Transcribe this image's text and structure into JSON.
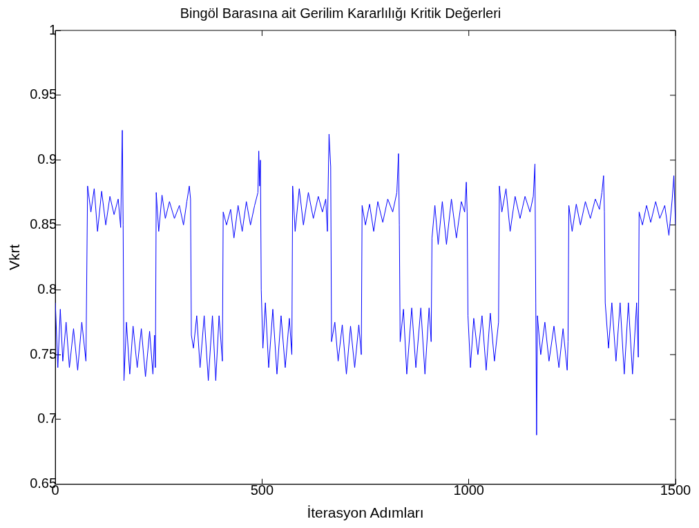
{
  "chart_data": {
    "type": "line",
    "title": "Bingöl Barasına ait Gerilim Kararlılığı Kritik Değerleri",
    "xlabel": "İterasyon Adımları",
    "ylabel": "Vkrt",
    "xlim": [
      0,
      1500
    ],
    "xticks": [
      0,
      500,
      1000,
      1500
    ],
    "ylim": [
      0.65,
      1
    ],
    "yticks": [
      0.65,
      0.7,
      0.75,
      0.8,
      0.85,
      0.9,
      0.95,
      1
    ],
    "grid": false,
    "legend": false,
    "marker": "none",
    "line_style": "solid",
    "series": [
      {
        "color": "#0000ff",
        "x": [
          0,
          6,
          12,
          18,
          26,
          34,
          44,
          54,
          64,
          74,
          78,
          86,
          94,
          102,
          112,
          122,
          132,
          142,
          152,
          158,
          162,
          164,
          166,
          172,
          180,
          188,
          198,
          208,
          218,
          228,
          236,
          240,
          242,
          244,
          250,
          258,
          266,
          276,
          288,
          300,
          310,
          318,
          324,
          327,
          329,
          334,
          342,
          350,
          360,
          370,
          380,
          388,
          396,
          404,
          406,
          414,
          424,
          432,
          442,
          452,
          462,
          472,
          482,
          490,
          492,
          494,
          496,
          498,
          502,
          508,
          516,
          526,
          536,
          546,
          556,
          566,
          572,
          574,
          580,
          590,
          600,
          612,
          624,
          636,
          646,
          654,
          658,
          662,
          666,
          668,
          676,
          684,
          694,
          704,
          714,
          724,
          734,
          740,
          742,
          750,
          760,
          770,
          780,
          792,
          804,
          816,
          826,
          830,
          832,
          834,
          842,
          850,
          862,
          872,
          884,
          894,
          904,
          909,
          911,
          918,
          926,
          936,
          946,
          958,
          970,
          982,
          990,
          994,
          996,
          998,
          1004,
          1012,
          1022,
          1032,
          1042,
          1052,
          1062,
          1072,
          1074,
          1080,
          1090,
          1100,
          1112,
          1124,
          1136,
          1148,
          1156,
          1160,
          1162,
          1164,
          1166,
          1174,
          1184,
          1194,
          1206,
          1218,
          1228,
          1238,
          1240,
          1242,
          1250,
          1260,
          1270,
          1282,
          1294,
          1306,
          1316,
          1322,
          1326,
          1328,
          1330,
          1338,
          1346,
          1356,
          1366,
          1376,
          1386,
          1396,
          1406,
          1410,
          1412,
          1420,
          1430,
          1440,
          1452,
          1462,
          1474,
          1484,
          1492,
          1496,
          1500
        ],
        "values": [
          0.79,
          0.74,
          0.785,
          0.745,
          0.775,
          0.74,
          0.77,
          0.738,
          0.775,
          0.745,
          0.88,
          0.86,
          0.878,
          0.845,
          0.876,
          0.85,
          0.872,
          0.858,
          0.87,
          0.848,
          0.923,
          0.85,
          0.73,
          0.775,
          0.735,
          0.772,
          0.74,
          0.77,
          0.733,
          0.768,
          0.735,
          0.765,
          0.74,
          0.875,
          0.845,
          0.873,
          0.855,
          0.868,
          0.855,
          0.865,
          0.85,
          0.868,
          0.88,
          0.87,
          0.765,
          0.755,
          0.78,
          0.74,
          0.78,
          0.73,
          0.78,
          0.73,
          0.78,
          0.745,
          0.86,
          0.85,
          0.862,
          0.84,
          0.865,
          0.845,
          0.868,
          0.85,
          0.865,
          0.875,
          0.907,
          0.88,
          0.9,
          0.8,
          0.755,
          0.79,
          0.74,
          0.785,
          0.735,
          0.78,
          0.74,
          0.778,
          0.75,
          0.88,
          0.845,
          0.878,
          0.85,
          0.875,
          0.855,
          0.872,
          0.86,
          0.87,
          0.845,
          0.92,
          0.895,
          0.76,
          0.775,
          0.745,
          0.773,
          0.735,
          0.772,
          0.74,
          0.773,
          0.75,
          0.865,
          0.85,
          0.866,
          0.845,
          0.868,
          0.852,
          0.87,
          0.86,
          0.875,
          0.905,
          0.85,
          0.76,
          0.785,
          0.735,
          0.786,
          0.74,
          0.786,
          0.735,
          0.786,
          0.76,
          0.84,
          0.865,
          0.835,
          0.868,
          0.835,
          0.87,
          0.84,
          0.868,
          0.86,
          0.883,
          0.86,
          0.78,
          0.74,
          0.778,
          0.75,
          0.78,
          0.738,
          0.782,
          0.745,
          0.775,
          0.88,
          0.86,
          0.878,
          0.845,
          0.872,
          0.855,
          0.872,
          0.86,
          0.872,
          0.897,
          0.79,
          0.688,
          0.78,
          0.75,
          0.775,
          0.745,
          0.772,
          0.74,
          0.77,
          0.738,
          0.76,
          0.865,
          0.845,
          0.866,
          0.85,
          0.868,
          0.855,
          0.87,
          0.862,
          0.875,
          0.888,
          0.86,
          0.79,
          0.755,
          0.79,
          0.745,
          0.79,
          0.735,
          0.79,
          0.735,
          0.79,
          0.748,
          0.86,
          0.85,
          0.865,
          0.852,
          0.868,
          0.855,
          0.865,
          0.842,
          0.87,
          0.888,
          0.85
        ]
      }
    ]
  }
}
